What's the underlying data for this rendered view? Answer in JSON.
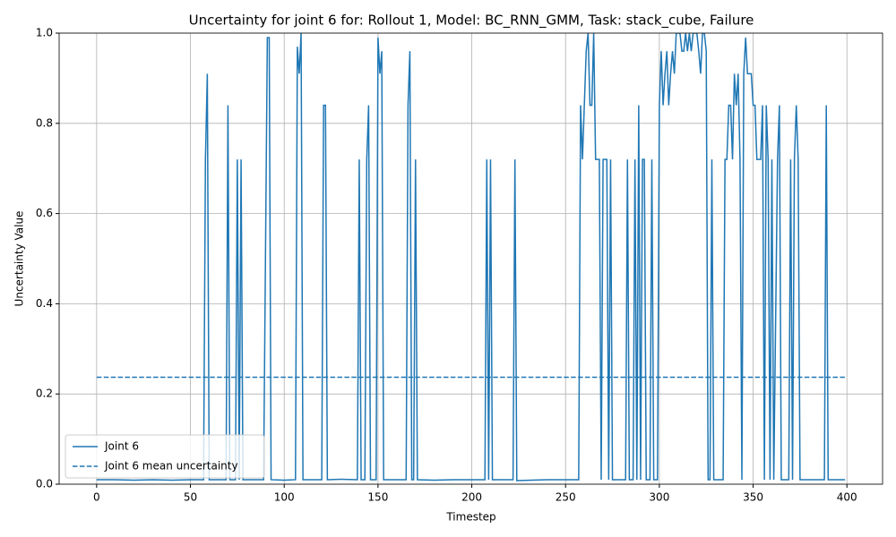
{
  "chart_data": {
    "type": "line",
    "title": "Uncertainty for joint 6 for: Rollout 1, Model: BC_RNN_GMM, Task: stack_cube, Failure",
    "x_label": "Timestep",
    "y_label": "Uncertainty Value",
    "xlim": [
      -20,
      419
    ],
    "ylim": [
      0,
      1
    ],
    "xticks": [
      0,
      50,
      100,
      150,
      200,
      250,
      300,
      350,
      400
    ],
    "yticks": [
      {
        "value": 0,
        "label": "0.0"
      },
      {
        "value": 0.2,
        "label": "0.2"
      },
      {
        "value": 0.4,
        "label": "0.4"
      },
      {
        "value": 0.6,
        "label": "0.6"
      },
      {
        "value": 0.8,
        "label": "0.8"
      },
      {
        "value": 1,
        "label": "1.0"
      }
    ],
    "grid": true,
    "legend": "lower left",
    "series": [
      {
        "name": "Joint 6",
        "color": "#1f77b4",
        "style": "solid",
        "x": [
          0,
          10,
          20,
          30,
          40,
          50,
          57,
          58,
          59,
          60,
          69,
          70,
          71,
          74,
          75,
          76,
          77,
          78,
          89,
          91,
          92,
          93,
          100,
          106,
          107,
          108,
          109,
          110,
          120,
          121,
          122,
          123,
          130,
          139,
          140,
          141,
          143,
          144,
          145,
          146,
          149,
          150,
          151,
          152,
          153,
          160,
          165,
          166,
          167,
          168,
          169,
          170,
          171,
          180,
          190,
          200,
          207,
          208,
          209,
          210,
          211,
          222,
          223,
          224,
          240,
          250,
          257,
          258,
          259,
          260,
          261,
          262,
          263,
          264,
          265,
          266,
          267,
          268,
          269,
          270,
          271,
          272,
          273,
          274,
          275,
          280,
          282,
          283,
          284,
          286,
          287,
          288,
          289,
          290,
          291,
          292,
          293,
          295,
          296,
          297,
          299,
          300,
          301,
          302,
          303,
          304,
          305,
          306,
          307,
          308,
          309,
          310,
          311,
          312,
          313,
          314,
          315,
          316,
          317,
          318,
          319,
          320,
          321,
          322,
          323,
          324,
          325,
          326,
          327,
          328,
          329,
          330,
          334,
          335,
          336,
          337,
          338,
          339,
          340,
          341,
          342,
          343,
          344,
          345,
          346,
          347,
          348,
          349,
          350,
          351,
          352,
          353,
          354,
          355,
          356,
          357,
          358,
          359,
          360,
          361,
          363,
          364,
          365,
          369,
          370,
          371,
          372,
          373,
          374,
          375,
          380,
          388,
          389,
          390,
          399
        ],
        "values": [
          0.01,
          0.01,
          0.009,
          0.01,
          0.009,
          0.01,
          0.01,
          0.72,
          0.91,
          0.01,
          0.01,
          0.84,
          0.01,
          0.01,
          0.72,
          0.01,
          0.72,
          0.01,
          0.01,
          0.99,
          0.99,
          0.01,
          0.009,
          0.01,
          0.97,
          0.91,
          1.0,
          0.01,
          0.01,
          0.84,
          0.84,
          0.01,
          0.011,
          0.01,
          0.72,
          0.01,
          0.01,
          0.72,
          0.84,
          0.01,
          0.01,
          0.99,
          0.91,
          0.96,
          0.01,
          0.01,
          0.01,
          0.84,
          0.96,
          0.01,
          0.01,
          0.72,
          0.01,
          0.009,
          0.01,
          0.01,
          0.01,
          0.72,
          0.01,
          0.72,
          0.01,
          0.01,
          0.72,
          0.008,
          0.01,
          0.01,
          0.01,
          0.84,
          0.72,
          0.84,
          0.96,
          1.0,
          0.84,
          0.84,
          1.0,
          0.72,
          0.72,
          0.72,
          0.01,
          0.72,
          0.72,
          0.72,
          0.01,
          0.72,
          0.01,
          0.01,
          0.01,
          0.72,
          0.01,
          0.01,
          0.72,
          0.01,
          0.84,
          0.01,
          0.72,
          0.72,
          0.01,
          0.01,
          0.72,
          0.01,
          0.01,
          0.84,
          0.96,
          0.84,
          0.91,
          0.96,
          0.84,
          0.91,
          0.96,
          0.91,
          1.0,
          1.0,
          1.0,
          0.96,
          0.96,
          1.0,
          0.96,
          1.0,
          0.96,
          1.0,
          1.0,
          1.0,
          0.96,
          0.91,
          1.0,
          1.0,
          0.96,
          0.01,
          0.01,
          0.72,
          0.01,
          0.01,
          0.01,
          0.72,
          0.72,
          0.84,
          0.84,
          0.72,
          0.91,
          0.84,
          0.91,
          0.72,
          0.01,
          0.91,
          0.99,
          0.91,
          0.91,
          0.91,
          0.84,
          0.84,
          0.72,
          0.72,
          0.72,
          0.84,
          0.01,
          0.84,
          0.72,
          0.01,
          0.72,
          0.01,
          0.72,
          0.84,
          0.01,
          0.01,
          0.72,
          0.01,
          0.72,
          0.84,
          0.72,
          0.01,
          0.01,
          0.01,
          0.84,
          0.01,
          0.01
        ]
      },
      {
        "name": "Joint 6 mean uncertainty",
        "color": "#1f77b4",
        "style": "dashed",
        "x": [
          0,
          399
        ],
        "values": [
          0.237,
          0.237
        ]
      }
    ]
  }
}
